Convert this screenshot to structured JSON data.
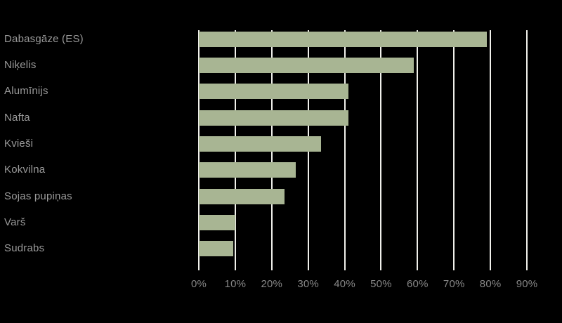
{
  "chart_data": {
    "type": "bar",
    "orientation": "horizontal",
    "title": "",
    "xlabel": "",
    "ylabel": "",
    "categories": [
      "Dabasgāze (ES)",
      "Niķelis",
      "Alumīnijs",
      "Nafta",
      "Kvieši",
      "Kokvilna",
      "Sojas pupiņas",
      "Varš",
      "Sudrabs"
    ],
    "values": [
      79,
      59,
      41,
      41,
      33.5,
      26.5,
      23.5,
      10,
      9.5
    ],
    "xlim": [
      0,
      90
    ],
    "x_tick_values": [
      0,
      10,
      20,
      30,
      40,
      50,
      60,
      70,
      80,
      90
    ],
    "x_ticks": [
      "0%",
      "10%",
      "20%",
      "30%",
      "40%",
      "50%",
      "60%",
      "70%",
      "80%",
      "90%"
    ],
    "grid": "vertical",
    "legend": "none"
  },
  "colors": {
    "background": "#000000",
    "bar": "#a8b593",
    "gridline": "#f0f0eb",
    "category_label": "#9a9a9a",
    "axis_label": "#878787"
  }
}
